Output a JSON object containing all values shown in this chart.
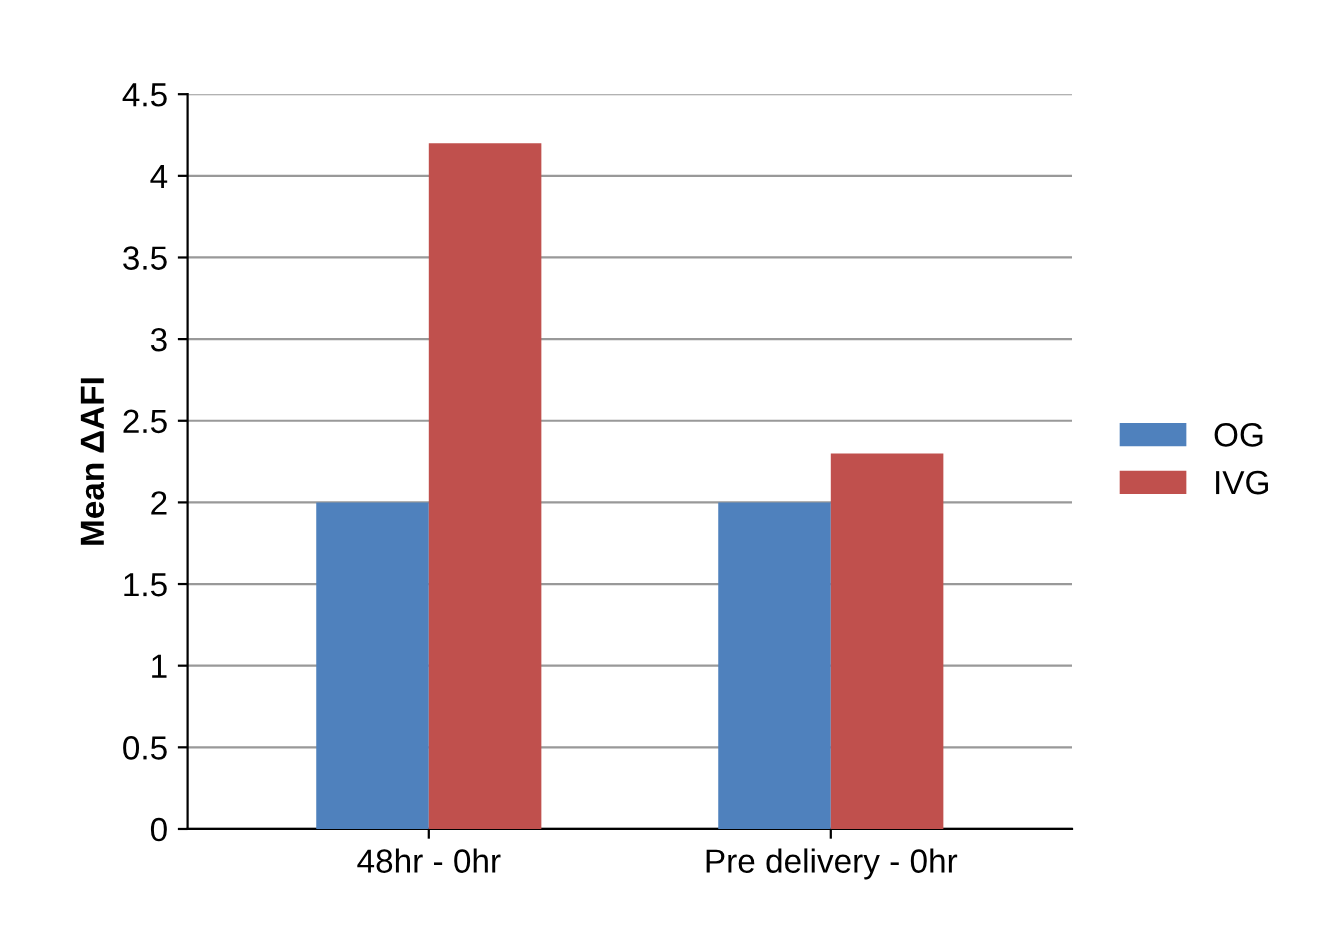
{
  "chart_data": {
    "type": "bar",
    "ylabel": "Mean ΔAFI",
    "categories": [
      "48hr - 0hr",
      "Pre delivery - 0hr"
    ],
    "series": [
      {
        "name": "OG",
        "color": "#4f81bd",
        "values": [
          2.0,
          2.0
        ]
      },
      {
        "name": "IVG",
        "color": "#c0504d",
        "values": [
          4.2,
          2.3
        ]
      }
    ],
    "ylim": [
      0,
      4.5
    ],
    "yticks": [
      0,
      0.5,
      1,
      1.5,
      2,
      2.5,
      3,
      3.5,
      4,
      4.5
    ],
    "grid": "y",
    "legend": "right"
  }
}
